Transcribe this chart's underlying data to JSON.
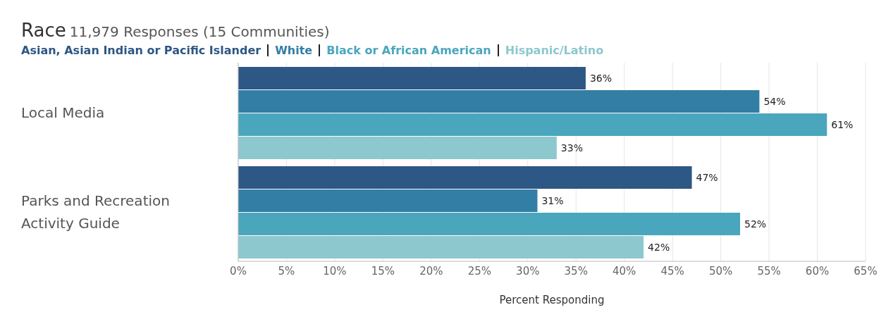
{
  "chart_data": {
    "type": "bar",
    "orientation": "horizontal",
    "title": "Race",
    "subtitle": "11,979 Responses (15 Communities)",
    "xlabel": "Percent Responding",
    "categories": [
      "Local Media",
      "Parks and Recreation Activity Guide"
    ],
    "series": [
      {
        "name": "Asian, Asian Indian or Pacific Islander",
        "color": "#2d5784",
        "values": [
          36,
          47
        ],
        "value_labels": [
          "36%",
          "47%"
        ]
      },
      {
        "name": "White",
        "color": "#337ea5",
        "values": [
          54,
          31
        ],
        "value_labels": [
          "54%",
          "31%"
        ]
      },
      {
        "name": "Black or African American",
        "color": "#4aa6bd",
        "values": [
          61,
          52
        ],
        "value_labels": [
          "61%",
          "52%"
        ]
      },
      {
        "name": "Hispanic/Latino",
        "color": "#8dc8cf",
        "values": [
          33,
          42
        ],
        "value_labels": [
          "33%",
          "42%"
        ]
      }
    ],
    "xlim": [
      0,
      65
    ],
    "xticks": [
      {
        "value": 0,
        "label": "0%"
      },
      {
        "value": 5,
        "label": "5%"
      },
      {
        "value": 10,
        "label": "10%"
      },
      {
        "value": 15,
        "label": "15%"
      },
      {
        "value": 20,
        "label": "20%"
      },
      {
        "value": 25,
        "label": "25%"
      },
      {
        "value": 30,
        "label": "30%"
      },
      {
        "value": 35,
        "label": "35%"
      },
      {
        "value": 40,
        "label": "40%"
      },
      {
        "value": 45,
        "label": "45%"
      },
      {
        "value": 50,
        "label": "50%"
      },
      {
        "value": 55,
        "label": "55%"
      },
      {
        "value": 60,
        "label": "60%"
      },
      {
        "value": 65,
        "label": "65%"
      }
    ],
    "grid": "x",
    "legend": "top left"
  }
}
